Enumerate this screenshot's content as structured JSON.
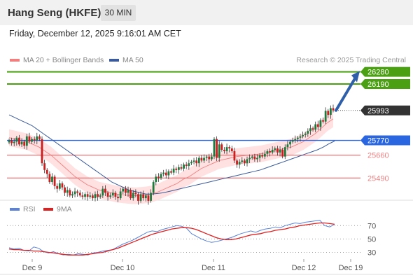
{
  "header": {
    "title": "Hang Seng (HKFE)",
    "timeframe": "30 MIN"
  },
  "date_line": "Friday, December 12, 2025 9:16:01 AM CET",
  "legend": {
    "ma20_label": "MA 20 + Bollinger Bands",
    "ma50_label": "MA 50",
    "rsi_label": "RSI",
    "ma9_label": "9MA",
    "credit": "Research © 2025 Trading Central"
  },
  "colors": {
    "ma20": "#f08080",
    "ma50": "#3a5a9a",
    "band_fill": "#ffdcdc",
    "candle_up": "#1e7a3c",
    "candle_down": "#c81e1e",
    "resistance": "#4aa012",
    "pivot": "#2a66e0",
    "support": "#f08080",
    "rsi": "#5b82d6",
    "rsi_ma": "#e02020",
    "last_price_box": "#333333",
    "arrow": "#2e5fa8"
  },
  "chart_data": [
    {
      "type": "candlestick",
      "name": "price",
      "ylim": [
        25330,
        26320
      ],
      "x_tick_labels": [
        "Dec 9",
        "Dec 10",
        "Dec 11",
        "Dec 12",
        "Dec 19"
      ],
      "levels": [
        {
          "value": 26280,
          "label": "26280",
          "kind": "resistance"
        },
        {
          "value": 26190,
          "label": "26190",
          "kind": "resistance"
        },
        {
          "value": 25993,
          "label": "25993",
          "kind": "last"
        },
        {
          "value": 25770,
          "label": "25770",
          "kind": "pivot"
        },
        {
          "value": 25660,
          "label": "25660",
          "kind": "support"
        },
        {
          "value": 25490,
          "label": "25490",
          "kind": "support"
        }
      ],
      "close": [
        25770,
        25750,
        25760,
        25790,
        25740,
        25760,
        25730,
        25800,
        25760,
        25780,
        25770,
        25800,
        25780,
        25600,
        25550,
        25520,
        25460,
        25500,
        25430,
        25410,
        25450,
        25420,
        25380,
        25400,
        25360,
        25370,
        25390,
        25380,
        25360,
        25350,
        25370,
        25350,
        25360,
        25340,
        25370,
        25350,
        25360,
        25410,
        25380,
        25350,
        25360,
        25380,
        25350,
        25340,
        25390,
        25410,
        25380,
        25400,
        25340,
        25380,
        25370,
        25320,
        25370,
        25340,
        25360,
        25320,
        25380,
        25460,
        25500,
        25490,
        25520,
        25530,
        25510,
        25540,
        25530,
        25560,
        25550,
        25570,
        25560,
        25590,
        25580,
        25600,
        25610,
        25620,
        25600,
        25640,
        25620,
        25640,
        25650,
        25630,
        25650,
        25780,
        25640,
        25740,
        25700,
        25690,
        25720,
        25710,
        25690,
        25620,
        25590,
        25610,
        25620,
        25600,
        25630,
        25640,
        25650,
        25630,
        25640,
        25660,
        25650,
        25670,
        25690,
        25680,
        25700,
        25710,
        25680,
        25700,
        25650,
        25720,
        25740,
        25760,
        25770,
        25780,
        25790,
        25800,
        25810,
        25820,
        25840,
        25860,
        25850,
        25890,
        25870,
        25920,
        25910,
        25990,
        25960,
        26010,
        25993
      ],
      "ma20": [
        25790,
        25780,
        25770,
        25760,
        25740,
        25720,
        25690,
        25660,
        25620,
        25580,
        25540,
        25500,
        25470,
        25440,
        25420,
        25400,
        25390,
        25380,
        25370,
        25365,
        25360,
        25358,
        25360,
        25365,
        25375,
        25390,
        25410,
        25430,
        25450,
        25480,
        25500,
        25530,
        25560,
        25580,
        25600,
        25620,
        25630,
        25640,
        25650,
        25655,
        25660,
        25665,
        25670,
        25680,
        25690,
        25700,
        25710,
        25720,
        25740,
        25760,
        25790,
        25820,
        25860,
        25900,
        25930
      ],
      "ma50": [
        25960,
        25940,
        25920,
        25900,
        25880,
        25850,
        25820,
        25790,
        25760,
        25730,
        25700,
        25670,
        25640,
        25610,
        25580,
        25550,
        25520,
        25490,
        25460,
        25440,
        25420,
        25400,
        25390,
        25380,
        25370,
        25370,
        25375,
        25380,
        25390,
        25400,
        25410,
        25420,
        25430,
        25440,
        25450,
        25460,
        25470,
        25480,
        25490,
        25500,
        25510,
        25520,
        25530,
        25540,
        25550,
        25565,
        25580,
        25595,
        25610,
        25625,
        25640,
        25655,
        25670,
        25685,
        25700,
        25720,
        25745,
        25765
      ]
    },
    {
      "type": "line",
      "name": "rsi_panel",
      "ylim": [
        20,
        85
      ],
      "y_ticks": [
        70,
        50,
        30
      ],
      "series": [
        {
          "name": "RSI",
          "values": [
            37,
            35,
            36,
            33,
            32,
            38,
            36,
            31,
            29,
            31,
            28,
            26,
            27,
            26,
            28,
            27,
            26,
            29,
            30,
            32,
            33,
            34,
            38,
            42,
            45,
            48,
            52,
            56,
            60,
            62,
            61,
            64,
            66,
            68,
            70,
            69,
            66,
            58,
            54,
            50,
            47,
            45,
            46,
            48,
            50,
            52,
            55,
            58,
            60,
            62,
            60,
            63,
            65,
            66,
            68,
            67,
            70,
            72,
            74,
            73,
            75,
            76,
            77,
            78,
            70,
            68,
            72
          ]
        },
        {
          "name": "9MA",
          "values": [
            35,
            34,
            34,
            33,
            33,
            32,
            32,
            31,
            30,
            29,
            28,
            27,
            26,
            26,
            26,
            26,
            27,
            28,
            29,
            30,
            32,
            34,
            36,
            39,
            42,
            45,
            48,
            51,
            54,
            57,
            59,
            61,
            63,
            65,
            66,
            67,
            67,
            66,
            64,
            61,
            58,
            55,
            52,
            50,
            49,
            49,
            50,
            52,
            54,
            56,
            57,
            58,
            60,
            61,
            63,
            64,
            65,
            67,
            68,
            70,
            71,
            72,
            73,
            74,
            74,
            73,
            72
          ]
        }
      ]
    }
  ]
}
